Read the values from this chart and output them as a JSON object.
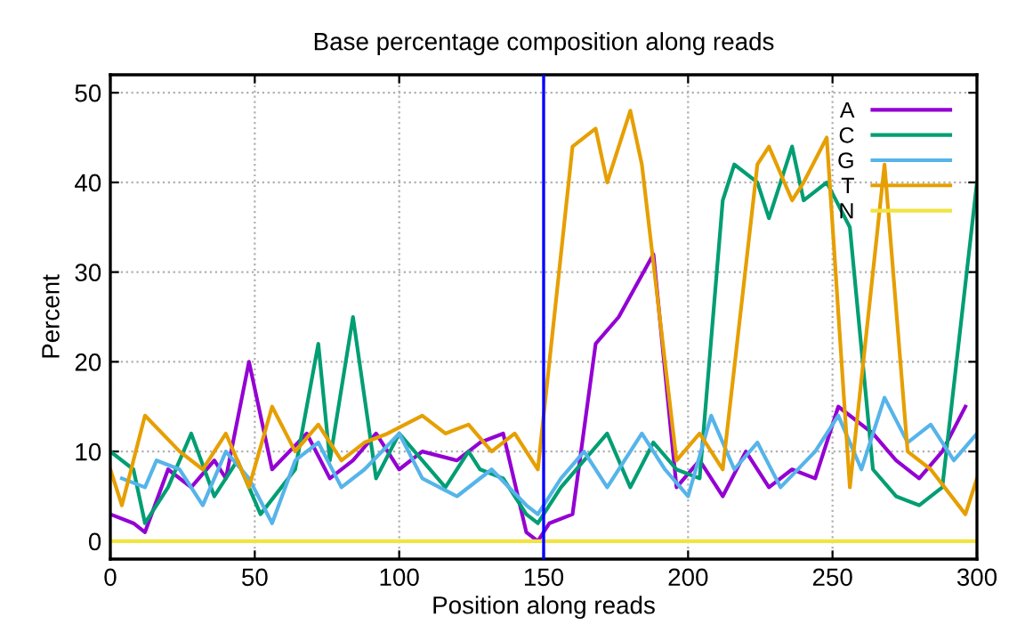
{
  "chart_data": {
    "type": "line",
    "title": "Base percentage composition along reads",
    "xlabel": "Position along reads",
    "ylabel": "Percent",
    "series": [
      {
        "name": "A",
        "color": "#9400d3",
        "x": [
          0,
          8,
          12,
          20,
          28,
          36,
          40,
          48,
          56,
          68,
          76,
          84,
          92,
          100,
          108,
          120,
          128,
          136,
          144,
          148,
          152,
          160,
          168,
          176,
          188,
          196,
          204,
          212,
          220,
          228,
          236,
          244,
          252,
          264,
          272,
          280,
          288,
          296
        ],
        "values": [
          3,
          2,
          1,
          8,
          6,
          9,
          7,
          20,
          8,
          12,
          7,
          9,
          12,
          8,
          10,
          9,
          11,
          12,
          1,
          0,
          2,
          3,
          22,
          25,
          32,
          6,
          9,
          5,
          10,
          6,
          8,
          7,
          15,
          12,
          9,
          7,
          10,
          15
        ]
      },
      {
        "name": "C",
        "color": "#009e73",
        "x": [
          0,
          8,
          12,
          20,
          28,
          36,
          44,
          52,
          64,
          72,
          76,
          84,
          92,
          100,
          108,
          116,
          124,
          128,
          136,
          144,
          148,
          156,
          164,
          172,
          180,
          188,
          196,
          204,
          212,
          216,
          224,
          228,
          236,
          240,
          248,
          256,
          264,
          272,
          280,
          288,
          300
        ],
        "values": [
          10,
          8,
          2,
          6,
          12,
          5,
          9,
          3,
          8,
          22,
          9,
          25,
          7,
          12,
          9,
          6,
          10,
          8,
          7,
          3,
          2,
          6,
          9,
          12,
          6,
          11,
          8,
          7,
          38,
          42,
          40,
          36,
          44,
          38,
          40,
          35,
          8,
          5,
          4,
          6,
          40
        ]
      },
      {
        "name": "G",
        "color": "#56b4e9",
        "x": [
          4,
          12,
          16,
          24,
          32,
          40,
          48,
          56,
          64,
          72,
          80,
          88,
          100,
          108,
          120,
          132,
          144,
          148,
          156,
          164,
          172,
          184,
          192,
          200,
          208,
          216,
          224,
          232,
          244,
          252,
          260,
          268,
          276,
          284,
          292,
          300
        ],
        "values": [
          7,
          6,
          9,
          8,
          4,
          10,
          7,
          2,
          9,
          11,
          6,
          8,
          12,
          7,
          5,
          8,
          4,
          3,
          7,
          10,
          6,
          12,
          8,
          5,
          14,
          8,
          11,
          6,
          10,
          14,
          8,
          16,
          11,
          13,
          9,
          12
        ]
      },
      {
        "name": "T",
        "color": "#e69f00",
        "x": [
          0,
          4,
          12,
          24,
          32,
          40,
          48,
          56,
          64,
          72,
          80,
          88,
          96,
          108,
          116,
          124,
          132,
          140,
          148,
          160,
          168,
          172,
          180,
          184,
          196,
          204,
          212,
          224,
          228,
          236,
          240,
          248,
          256,
          268,
          276,
          284,
          296,
          300
        ],
        "values": [
          8,
          4,
          14,
          10,
          8,
          12,
          6,
          15,
          10,
          13,
          9,
          11,
          12,
          14,
          12,
          13,
          10,
          12,
          8,
          44,
          46,
          40,
          48,
          42,
          9,
          12,
          8,
          42,
          44,
          38,
          40,
          45,
          6,
          42,
          10,
          8,
          3,
          7
        ]
      },
      {
        "name": "N",
        "color": "#f0e442",
        "x": [
          0,
          300
        ],
        "values": [
          0,
          0
        ]
      }
    ],
    "xlim": [
      0,
      300
    ],
    "ylim": [
      -2,
      52
    ],
    "xticks": [
      0,
      50,
      100,
      150,
      200,
      250,
      300
    ],
    "yticks": [
      0,
      10,
      20,
      30,
      40,
      50
    ],
    "ref_lines": [
      {
        "axis": "x",
        "value": 150,
        "color": "#0000ff"
      }
    ],
    "grid": true,
    "legend": "top right",
    "line_style": "solid",
    "marker": "none"
  }
}
